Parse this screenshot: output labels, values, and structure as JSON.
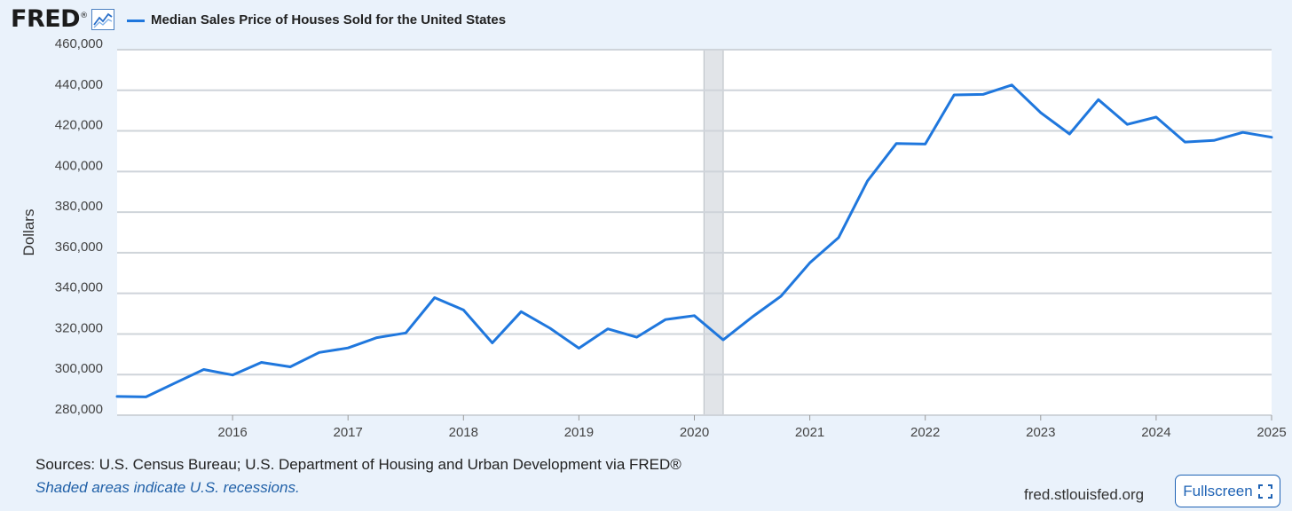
{
  "header": {
    "logo_text": "FRED",
    "logo_registered": "®",
    "series_title": "Median Sales Price of Houses Sold for the United States"
  },
  "chart_data": {
    "type": "line",
    "title": "Median Sales Price of Houses Sold for the United States",
    "ylabel": "Dollars",
    "xlabel": "",
    "ylim": [
      280000,
      460000
    ],
    "xlim": [
      2015.0,
      2025.0
    ],
    "yticks": [
      280000,
      300000,
      320000,
      340000,
      360000,
      380000,
      400000,
      420000,
      440000,
      460000
    ],
    "ytick_labels": [
      "280,000",
      "300,000",
      "320,000",
      "340,000",
      "360,000",
      "380,000",
      "400,000",
      "420,000",
      "440,000",
      "460,000"
    ],
    "xticks": [
      2016,
      2017,
      2018,
      2019,
      2020,
      2021,
      2022,
      2023,
      2024,
      2025
    ],
    "xtick_labels": [
      "2016",
      "2017",
      "2018",
      "2019",
      "2020",
      "2021",
      "2022",
      "2023",
      "2024",
      "2025"
    ],
    "grid": true,
    "recessions": [
      {
        "start": 2020.083,
        "end": 2020.25
      }
    ],
    "series": [
      {
        "name": "Median Sales Price of Houses Sold for the United States",
        "color": "#1f77dd",
        "x": [
          2015.0,
          2015.25,
          2015.5,
          2015.75,
          2016.0,
          2016.25,
          2016.5,
          2016.75,
          2017.0,
          2017.25,
          2017.5,
          2017.75,
          2018.0,
          2018.25,
          2018.5,
          2018.75,
          2019.0,
          2019.25,
          2019.5,
          2019.75,
          2020.0,
          2020.25,
          2020.5,
          2020.75,
          2021.0,
          2021.25,
          2021.5,
          2021.75,
          2022.0,
          2022.25,
          2022.5,
          2022.75,
          2023.0,
          2023.25,
          2023.5,
          2023.75,
          2024.0,
          2024.25,
          2024.5,
          2024.75,
          2025.0
        ],
        "values": [
          289200,
          289000,
          295800,
          302500,
          299800,
          306000,
          303800,
          310900,
          313100,
          318200,
          320500,
          337900,
          331800,
          315600,
          331000,
          322800,
          313000,
          322500,
          318400,
          327100,
          329000,
          317100,
          328300,
          338600,
          355000,
          367500,
          395400,
          413800,
          413500,
          437700,
          438000,
          442600,
          429000,
          418500,
          435400,
          423200,
          426800,
          414500,
          415300,
          419300,
          416900
        ]
      }
    ]
  },
  "footer": {
    "sources": "Sources: U.S. Census Bureau; U.S. Department of Housing and Urban Development via FRED®",
    "recession_note": "Shaded areas indicate U.S. recessions.",
    "url": "fred.stlouisfed.org",
    "fullscreen_label": "Fullscreen"
  },
  "colors": {
    "background": "#eaf2fb",
    "line": "#1f77dd",
    "recession": "#e1e4e8",
    "accent": "#1f63b5"
  },
  "icons": {
    "chart_logo": "line-chart-icon",
    "fullscreen": "expand-icon"
  }
}
